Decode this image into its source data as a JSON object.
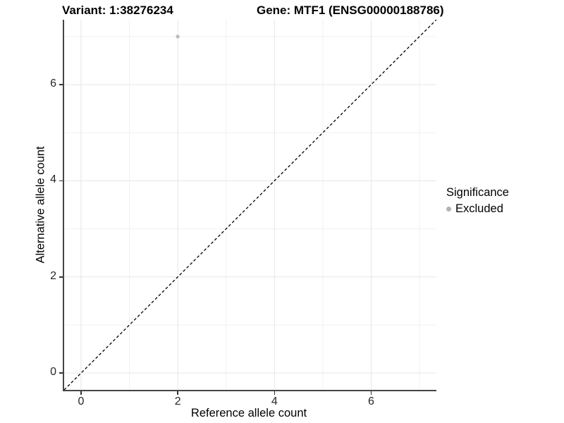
{
  "figure": {
    "title_left": "Variant: 1:38276234",
    "title_right": "Gene: MTF1 (ENSG00000188786)"
  },
  "chart_data": {
    "type": "scatter",
    "title_left": "Variant: 1:38276234",
    "title_right": "Gene: MTF1 (ENSG00000188786)",
    "xlabel": "Reference allele count",
    "ylabel": "Alternative allele count",
    "xlim": [
      -0.35,
      7.35
    ],
    "ylim": [
      -0.35,
      7.35
    ],
    "x_ticks": [
      0,
      2,
      4,
      6
    ],
    "y_ticks": [
      0,
      2,
      4,
      6
    ],
    "grid_major": [
      0,
      2,
      4,
      6
    ],
    "grid_minor": [
      1,
      3,
      5,
      7
    ],
    "grid": {
      "show": true,
      "major_color": "#e6e6e6",
      "minor_color": "#f2f2f2"
    },
    "points": [
      {
        "x": 2,
        "y": 7,
        "significance": "Excluded",
        "color": "#bdbdbd",
        "radius": 2.7
      }
    ],
    "identity_line": {
      "from": [
        -0.35,
        -0.35
      ],
      "to": [
        7.35,
        7.35
      ],
      "style": "dashed",
      "color": "#000000"
    },
    "legend": {
      "position": "right",
      "title": "Significance",
      "items": [
        {
          "label": "Excluded",
          "color": "#b3b3b3"
        }
      ]
    },
    "colors": {
      "axis_line": "#454545",
      "tick_mark": "#333333",
      "tick_text": "#262626"
    }
  }
}
